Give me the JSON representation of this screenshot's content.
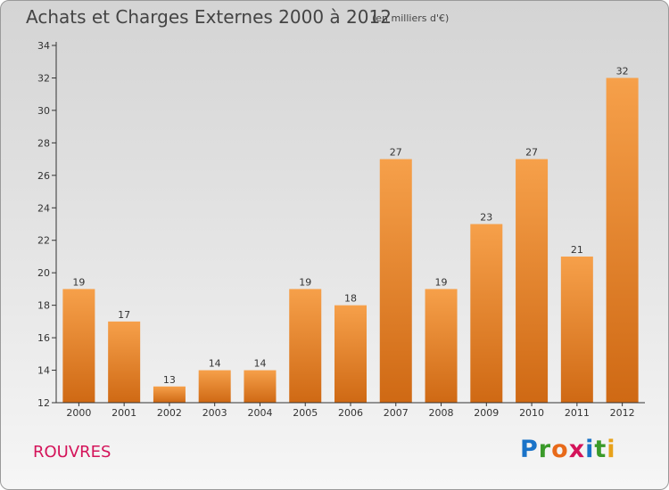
{
  "title": "Achats et Charges Externes 2000 à 2012",
  "unit_note": "(en milliers d'€)",
  "commune": "ROUVRES",
  "logo": {
    "letters": [
      "P",
      "r",
      "o",
      "x",
      "i",
      "t",
      "i"
    ],
    "colors": [
      "#1a73c8",
      "#3a9a2a",
      "#e86a1a",
      "#d4145a",
      "#1a73c8",
      "#3a9a2a",
      "#e8a21a"
    ]
  },
  "colors": {
    "bar_top": "#f6a04a",
    "bar_bottom": "#cf6914",
    "axis": "#333333"
  },
  "chart_data": {
    "type": "bar",
    "categories": [
      "2000",
      "2001",
      "2002",
      "2003",
      "2004",
      "2005",
      "2006",
      "2007",
      "2008",
      "2009",
      "2010",
      "2011",
      "2012"
    ],
    "values": [
      19,
      17,
      13,
      14,
      14,
      19,
      18,
      27,
      19,
      23,
      27,
      21,
      32
    ],
    "ylim": [
      12,
      34
    ],
    "yticks": [
      12,
      14,
      16,
      18,
      20,
      22,
      24,
      26,
      28,
      30,
      32,
      34
    ],
    "grid": false
  }
}
